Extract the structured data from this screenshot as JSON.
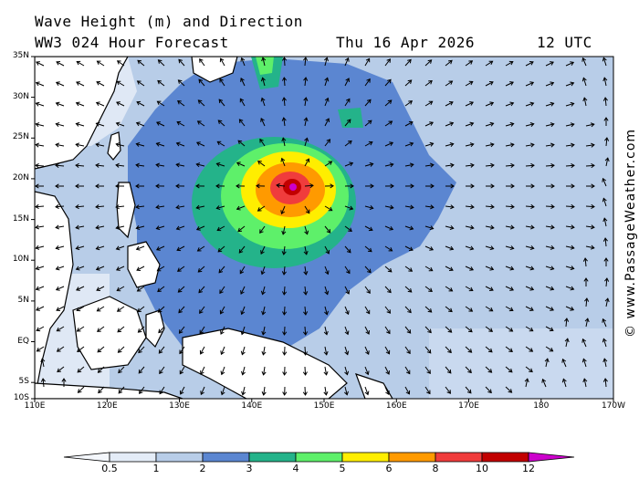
{
  "header": {
    "title_line1": "Wave Height (m) and Direction",
    "title_line2": "WW3 024 Hour Forecast",
    "date": "Thu 16 Apr 2026",
    "time": "12 UTC"
  },
  "credit": "© www.PassageWeather.com",
  "lat_labels": [
    "35N",
    "30N",
    "25N",
    "20N",
    "15N",
    "10N",
    "5N",
    "EQ",
    "5S",
    "10S"
  ],
  "lon_labels": [
    "110E",
    "120E",
    "130E",
    "140E",
    "150E",
    "160E",
    "170E",
    "180",
    "170W"
  ],
  "legend": {
    "ticks": [
      "0.5",
      "1",
      "2",
      "3",
      "4",
      "5",
      "6",
      "8",
      "10",
      "12"
    ],
    "colors": [
      "#e4ecf7",
      "#b8cde8",
      "#5b86d1",
      "#24b38a",
      "#5ef06a",
      "#ffee00",
      "#ff9a00",
      "#f03c3c",
      "#c20000",
      "#cc00cc"
    ]
  },
  "colors": {
    "land": "#ffffff",
    "water_low": "#c5d7ee",
    "coast": "#000000"
  },
  "storm": {
    "center_lat": 19.5,
    "center_lon": 145.5,
    "max_height_m": 12
  }
}
